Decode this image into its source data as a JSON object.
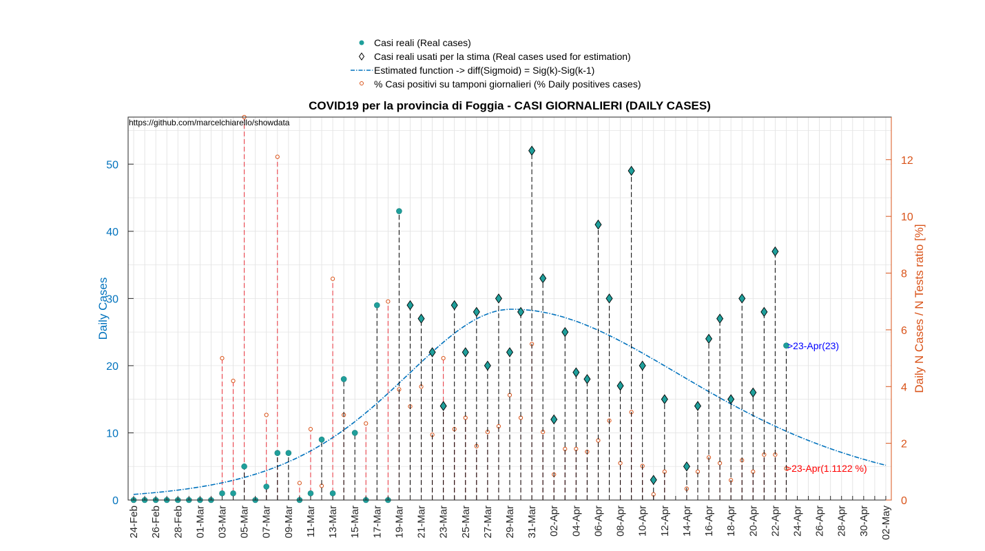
{
  "chart_data": {
    "type": "scatter",
    "title": "COVID19 per la provincia di Foggia - CASI GIORNALIERI (DAILY CASES)",
    "annotation_url": "https://github.com/marcelchiarello/showdata",
    "ylabel_left": "Daily Cases",
    "ylabel_right": "Daily N Cases / N Tests ratio [%]",
    "ylim_left": [
      0,
      57
    ],
    "ylim_right": [
      0,
      13.5
    ],
    "yticks_left": [
      0,
      10,
      20,
      30,
      40,
      50
    ],
    "yticks_right": [
      0,
      2,
      4,
      6,
      8,
      10,
      12
    ],
    "xlim_days": [
      -0.5,
      68.5
    ],
    "x_ticks": [
      "24-Feb",
      "26-Feb",
      "28-Feb",
      "01-Mar",
      "03-Mar",
      "05-Mar",
      "07-Mar",
      "09-Mar",
      "11-Mar",
      "13-Mar",
      "15-Mar",
      "17-Mar",
      "19-Mar",
      "21-Mar",
      "23-Mar",
      "25-Mar",
      "27-Mar",
      "29-Mar",
      "31-Mar",
      "02-Apr",
      "04-Apr",
      "06-Apr",
      "08-Apr",
      "10-Apr",
      "12-Apr",
      "14-Apr",
      "16-Apr",
      "18-Apr",
      "20-Apr",
      "22-Apr",
      "24-Apr",
      "26-Apr",
      "28-Apr",
      "30-Apr",
      "02-May"
    ],
    "grid": true,
    "legend_position": "top",
    "legend": [
      "Casi reali (Real cases)",
      "Casi reali usati per la stima (Real cases used for estimation)",
      "Estimated function -> diff(Sigmoid) = Sig(k)-Sig(k-1)",
      "% Casi positivi su tamponi giornalieri (% Daily positives cases)"
    ],
    "annotation_cases": ">23-Apr(23)",
    "annotation_ratio": ">23-Apr(1.1122 %)",
    "real_cases": [
      0,
      0,
      0,
      0,
      0,
      0,
      0,
      0,
      1,
      1,
      5,
      0,
      2,
      7,
      7,
      0,
      1,
      9,
      1,
      18,
      10,
      0,
      29,
      0,
      43,
      29,
      27,
      22,
      14,
      29,
      22,
      28,
      20,
      30,
      22,
      28,
      52,
      33,
      12,
      25,
      19,
      18,
      41,
      30,
      17,
      49,
      20,
      3,
      15,
      null,
      5,
      14,
      24,
      27,
      15,
      30,
      16,
      28,
      37,
      23
    ],
    "estimation_start_index": 25,
    "estimation_end_index": 58,
    "ratio_pct": [
      null,
      null,
      null,
      null,
      null,
      null,
      null,
      null,
      5.0,
      4.2,
      13.5,
      null,
      3.0,
      12.1,
      null,
      0.6,
      2.5,
      0.5,
      7.8,
      3.0,
      null,
      2.7,
      null,
      7.0,
      3.9,
      3.3,
      4.0,
      2.3,
      5.0,
      2.5,
      2.9,
      1.9,
      2.4,
      2.6,
      3.7,
      2.9,
      5.5,
      2.4,
      0.9,
      1.8,
      1.8,
      1.7,
      2.1,
      2.8,
      1.3,
      3.1,
      1.2,
      0.2,
      1.0,
      null,
      0.4,
      1.0,
      1.5,
      1.3,
      0.7,
      1.4,
      1.0,
      1.6,
      1.6,
      1.1122
    ],
    "sigmoid_diff": {
      "peak_day": 34.2,
      "peak_value": 28.4,
      "left_scale": 7.0,
      "right_scale": 11.3
    }
  },
  "colors": {
    "real_cases": "#1f9f9b",
    "estimated_curve": "#0072bd",
    "ratio_marker": "#d95319",
    "ratio_stem": "#e8303a",
    "case_stem": "#000000",
    "annotation_cases": "#0000ff",
    "annotation_ratio": "#ff0000"
  }
}
